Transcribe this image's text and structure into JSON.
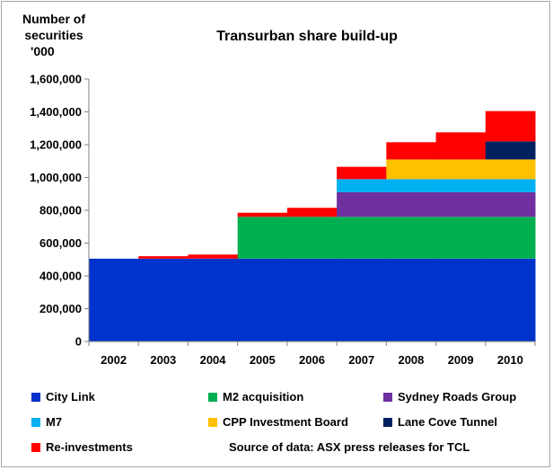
{
  "chart_data": {
    "type": "bar",
    "stacked": true,
    "title": "Transurban share build-up",
    "ylabel": "Number of securities '000",
    "ylim": [
      0,
      1600000
    ],
    "yticks": [
      0,
      200000,
      400000,
      600000,
      800000,
      1000000,
      1200000,
      1400000,
      1600000
    ],
    "ytick_labels": [
      "0",
      "200,000",
      "400,000",
      "600,000",
      "800,000",
      "1,000,000",
      "1,200,000",
      "1,400,000",
      "1,600,000"
    ],
    "grid": false,
    "legend_position": "bottom",
    "categories": [
      "2002",
      "2003",
      "2004",
      "2005",
      "2006",
      "2007",
      "2008",
      "2009",
      "2010"
    ],
    "series": [
      {
        "name": "City Link",
        "color": "#0033cc",
        "values": [
          505000,
          505000,
          505000,
          505000,
          505000,
          505000,
          505000,
          505000,
          505000
        ]
      },
      {
        "name": "M2 acquisition",
        "color": "#00b050",
        "values": [
          0,
          0,
          0,
          255000,
          255000,
          255000,
          255000,
          255000,
          255000
        ]
      },
      {
        "name": "Sydney Roads Group",
        "color": "#7030a0",
        "values": [
          0,
          0,
          0,
          0,
          0,
          150000,
          150000,
          150000,
          150000
        ]
      },
      {
        "name": "M7",
        "color": "#00b0f0",
        "values": [
          0,
          0,
          0,
          0,
          0,
          80000,
          80000,
          80000,
          80000
        ]
      },
      {
        "name": "CPP Investment Board",
        "color": "#ffc000",
        "values": [
          0,
          0,
          0,
          0,
          0,
          0,
          120000,
          120000,
          120000
        ]
      },
      {
        "name": "Lane Cove Tunnel",
        "color": "#002060",
        "values": [
          0,
          0,
          0,
          0,
          0,
          0,
          0,
          0,
          110000
        ]
      },
      {
        "name": "Re-investments",
        "color": "#ff0000",
        "values": [
          0,
          15000,
          25000,
          25000,
          55000,
          75000,
          105000,
          165000,
          185000
        ]
      }
    ],
    "source": "Source of data: ASX press releases for TCL"
  }
}
